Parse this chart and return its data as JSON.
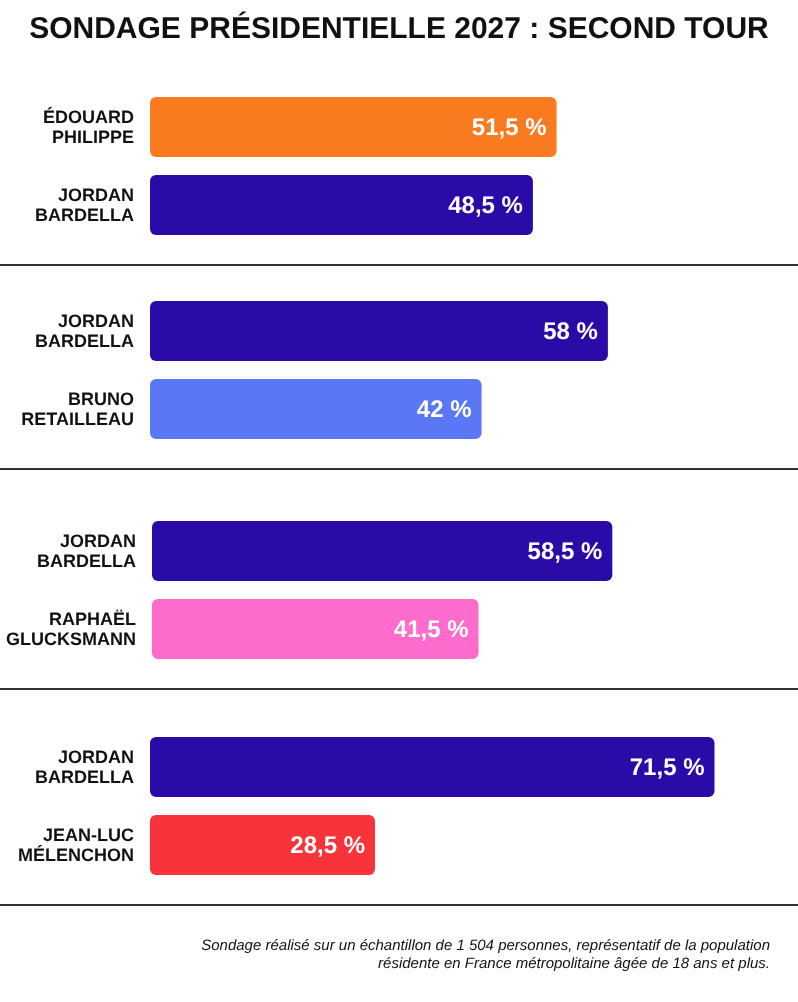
{
  "chart_data": [
    {
      "type": "bar",
      "orientation": "horizontal",
      "title": "SONDAGE PRÉSIDENTIELLE 2027 : SECOND TOUR",
      "categories": [
        "ÉDOUARD PHILIPPE",
        "JORDAN BARDELLA"
      ],
      "values": [
        51.5,
        48.5
      ],
      "colors": [
        "#f97a1f",
        "#2b0ba8"
      ],
      "value_labels": [
        "51,5 %",
        "48,5 %"
      ]
    },
    {
      "type": "bar",
      "orientation": "horizontal",
      "categories": [
        "JORDAN BARDELLA",
        "BRUNO RETAILLEAU"
      ],
      "values": [
        58,
        42
      ],
      "colors": [
        "#2b0ba8",
        "#5a78f5"
      ],
      "value_labels": [
        "58 %",
        "42 %"
      ]
    },
    {
      "type": "bar",
      "orientation": "horizontal",
      "categories": [
        "JORDAN BARDELLA",
        "RAPHAËL GLUCKSMANN"
      ],
      "values": [
        58.5,
        41.5
      ],
      "colors": [
        "#2b0ba8",
        "#fb6ccc"
      ],
      "value_labels": [
        "58,5 %",
        "41,5 %"
      ]
    },
    {
      "type": "bar",
      "orientation": "horizontal",
      "categories": [
        "JORDAN BARDELLA",
        "JEAN-LUC MÉLENCHON"
      ],
      "values": [
        71.5,
        28.5
      ],
      "colors": [
        "#2b0ba8",
        "#f8343a"
      ],
      "value_labels": [
        "71,5 %",
        "28,5 %"
      ],
      "annotations": [
        "Sondage réalisé sur un échantillon de 1 504 personnes, représentatif de la population résidente en France métropolitaine âgée de 18 ans et plus."
      ]
    }
  ]
}
